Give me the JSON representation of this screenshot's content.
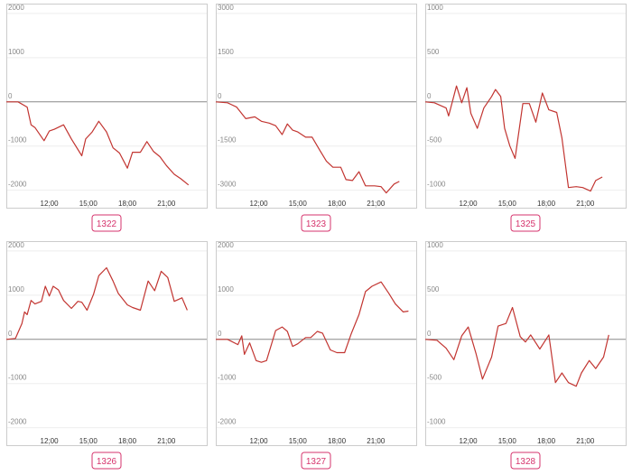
{
  "chart_data": [
    {
      "type": "line",
      "title": "1322",
      "color": "#c23531",
      "grid": true,
      "x": [
        8.7,
        9.6,
        10.3,
        10.6,
        10.9,
        11.6,
        12.0,
        12.4,
        13.1,
        13.7,
        14.5,
        14.8,
        15.3,
        15.8,
        16.4,
        16.9,
        17.4,
        18.0,
        18.4,
        19.0,
        19.5,
        20.0,
        20.5,
        21.0,
        21.6,
        22.1,
        22.7
      ],
      "values": [
        0,
        0,
        -120,
        -520,
        -580,
        -880,
        -660,
        -620,
        -520,
        -840,
        -1220,
        -840,
        -680,
        -440,
        -680,
        -1040,
        -1160,
        -1500,
        -1140,
        -1140,
        -900,
        -1120,
        -1240,
        -1440,
        -1640,
        -1740,
        -1880
      ],
      "xlim": [
        8.7,
        24.1
      ],
      "xticks": [
        {
          "value": 12,
          "label": "12:00"
        },
        {
          "value": 15,
          "label": "15:00"
        },
        {
          "value": 18,
          "label": "18:00"
        },
        {
          "value": 21,
          "label": "21:00"
        }
      ],
      "ylim": [
        -2150,
        2100
      ],
      "yticks": [
        -2000,
        -1000,
        0,
        1000,
        2000
      ]
    },
    {
      "type": "line",
      "title": "1323",
      "color": "#c23531",
      "grid": true,
      "x": [
        8.7,
        9.6,
        10.3,
        11.0,
        11.7,
        12.2,
        12.8,
        13.3,
        13.8,
        14.2,
        14.6,
        15.0,
        15.6,
        16.1,
        16.7,
        17.2,
        17.7,
        18.3,
        18.7,
        19.2,
        19.7,
        20.2,
        20.9,
        21.4,
        21.8,
        22.4,
        22.8
      ],
      "values": [
        0,
        -30,
        -180,
        -570,
        -510,
        -660,
        -720,
        -810,
        -1110,
        -750,
        -960,
        -1020,
        -1200,
        -1200,
        -1650,
        -2010,
        -2220,
        -2220,
        -2640,
        -2670,
        -2370,
        -2850,
        -2850,
        -2880,
        -3090,
        -2790,
        -2700
      ],
      "xlim": [
        8.7,
        24.1
      ],
      "xticks": [
        {
          "value": 12,
          "label": "12:00"
        },
        {
          "value": 15,
          "label": "15:00"
        },
        {
          "value": 18,
          "label": "18:00"
        },
        {
          "value": 21,
          "label": "21:00"
        }
      ],
      "ylim": [
        -3225,
        3150
      ],
      "yticks": [
        -3000,
        -1500,
        0,
        1500,
        3000
      ]
    },
    {
      "type": "line",
      "title": "1325",
      "color": "#c23531",
      "grid": true,
      "x": [
        8.7,
        9.4,
        10.3,
        10.5,
        11.1,
        11.5,
        11.9,
        12.2,
        12.7,
        13.2,
        13.8,
        14.1,
        14.5,
        14.8,
        15.2,
        15.6,
        16.2,
        16.7,
        17.2,
        17.7,
        18.2,
        18.8,
        19.2,
        19.7,
        20.3,
        20.8,
        21.4,
        21.8,
        22.3
      ],
      "values": [
        0,
        -10,
        -70,
        -160,
        180,
        -10,
        160,
        -130,
        -300,
        -70,
        60,
        140,
        60,
        -300,
        -500,
        -640,
        -20,
        -20,
        -230,
        100,
        -90,
        -120,
        -410,
        -970,
        -960,
        -970,
        -1010,
        -890,
        -850
      ],
      "xlim": [
        8.7,
        24.1
      ],
      "xticks": [
        {
          "value": 12,
          "label": "12:00"
        },
        {
          "value": 15,
          "label": "15:00"
        },
        {
          "value": 18,
          "label": "18:00"
        },
        {
          "value": 21,
          "label": "21:00"
        }
      ],
      "ylim": [
        -1075,
        1050
      ],
      "yticks": [
        -1000,
        -500,
        0,
        500,
        1000
      ]
    },
    {
      "type": "line",
      "title": "1326",
      "color": "#c23531",
      "grid": true,
      "x": [
        8.7,
        9.4,
        9.9,
        10.1,
        10.3,
        10.6,
        10.9,
        11.4,
        11.7,
        12.0,
        12.3,
        12.7,
        13.1,
        13.7,
        14.2,
        14.5,
        14.9,
        15.4,
        15.8,
        16.4,
        16.9,
        17.3,
        18.0,
        18.4,
        19.0,
        19.6,
        20.1,
        20.6,
        21.1,
        21.6,
        22.2,
        22.6
      ],
      "values": [
        0,
        20,
        360,
        620,
        560,
        880,
        800,
        860,
        1200,
        980,
        1200,
        1120,
        880,
        700,
        860,
        840,
        660,
        1020,
        1440,
        1620,
        1320,
        1040,
        780,
        720,
        660,
        1320,
        1100,
        1540,
        1400,
        860,
        940,
        660
      ],
      "xlim": [
        8.7,
        24.1
      ],
      "xticks": [
        {
          "value": 12,
          "label": "12:00"
        },
        {
          "value": 15,
          "label": "15:00"
        },
        {
          "value": 18,
          "label": "18:00"
        },
        {
          "value": 21,
          "label": "21:00"
        }
      ],
      "ylim": [
        -2150,
        2100
      ],
      "yticks": [
        -2000,
        -1000,
        0,
        1000,
        2000
      ]
    },
    {
      "type": "line",
      "title": "1327",
      "color": "#c23531",
      "grid": true,
      "x": [
        8.7,
        9.6,
        10.4,
        10.7,
        10.9,
        11.3,
        11.8,
        12.2,
        12.6,
        13.3,
        13.8,
        14.2,
        14.6,
        15.0,
        15.6,
        16.0,
        16.5,
        16.9,
        17.5,
        18.0,
        18.6,
        19.1,
        19.7,
        20.2,
        20.7,
        21.4,
        22.0,
        22.5,
        23.1,
        23.5
      ],
      "values": [
        0,
        0,
        -120,
        80,
        -340,
        -80,
        -480,
        -520,
        -480,
        200,
        280,
        180,
        -160,
        -100,
        40,
        40,
        180,
        140,
        -240,
        -300,
        -300,
        120,
        560,
        1080,
        1200,
        1300,
        1040,
        800,
        620,
        640
      ],
      "xlim": [
        8.7,
        24.1
      ],
      "xticks": [
        {
          "value": 12,
          "label": "12:00"
        },
        {
          "value": 15,
          "label": "15:00"
        },
        {
          "value": 18,
          "label": "18:00"
        },
        {
          "value": 21,
          "label": "21:00"
        }
      ],
      "ylim": [
        -2150,
        2100
      ],
      "yticks": [
        -2000,
        -1000,
        0,
        1000,
        2000
      ]
    },
    {
      "type": "line",
      "title": "1328",
      "color": "#c23531",
      "grid": true,
      "x": [
        8.7,
        9.6,
        10.3,
        10.9,
        11.5,
        12.0,
        12.6,
        13.1,
        13.8,
        14.3,
        14.9,
        15.4,
        16.0,
        16.4,
        16.8,
        17.5,
        18.2,
        18.7,
        19.2,
        19.7,
        20.3,
        20.7,
        21.3,
        21.8,
        22.4,
        22.8
      ],
      "values": [
        0,
        -10,
        -100,
        -230,
        40,
        140,
        -160,
        -450,
        -200,
        150,
        180,
        360,
        30,
        -30,
        50,
        -110,
        50,
        -490,
        -380,
        -490,
        -530,
        -380,
        -240,
        -330,
        -200,
        50
      ],
      "xlim": [
        8.7,
        24.1
      ],
      "xticks": [
        {
          "value": 12,
          "label": "12:00"
        },
        {
          "value": 15,
          "label": "15:00"
        },
        {
          "value": 18,
          "label": "18:00"
        },
        {
          "value": 21,
          "label": "21:00"
        }
      ],
      "ylim": [
        -1075,
        1050
      ],
      "yticks": [
        -1000,
        -500,
        0,
        500,
        1000
      ]
    }
  ]
}
